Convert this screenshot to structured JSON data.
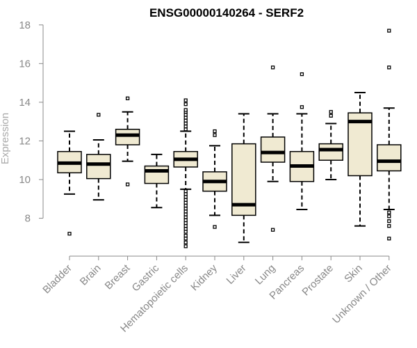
{
  "chart_data": {
    "type": "boxplot",
    "title": "ENSG00000140264 - SERF2",
    "xlabel": "",
    "ylabel": "Expression",
    "ylim": [
      6.4,
      18.1
    ],
    "yticks": [
      8,
      10,
      12,
      14,
      16,
      18
    ],
    "colors": {
      "box_fill": "#f0ead2",
      "box_stroke": "#000000",
      "axis": "#888888"
    },
    "categories": [
      "Bladder",
      "Brain",
      "Breast",
      "Gastric",
      "Hematopoietic cells",
      "Kidney",
      "Liver",
      "Lung",
      "Pancreas",
      "Prostate",
      "Skin",
      "Unknown / Other"
    ],
    "boxes": [
      {
        "name": "Bladder",
        "whisker_low": 9.25,
        "q1": 10.35,
        "median": 10.85,
        "q3": 11.45,
        "whisker_high": 12.5,
        "outliers": [
          7.2
        ]
      },
      {
        "name": "Brain",
        "whisker_low": 8.95,
        "q1": 10.05,
        "median": 10.8,
        "q3": 11.3,
        "whisker_high": 12.05,
        "outliers": [
          13.35
        ]
      },
      {
        "name": "Breast",
        "whisker_low": 10.95,
        "q1": 11.8,
        "median": 12.3,
        "q3": 12.6,
        "whisker_high": 13.5,
        "outliers": [
          9.75,
          14.2
        ]
      },
      {
        "name": "Gastric",
        "whisker_low": 8.55,
        "q1": 9.8,
        "median": 10.45,
        "q3": 10.7,
        "whisker_high": 11.3,
        "outliers": []
      },
      {
        "name": "Hematopoietic cells",
        "whisker_low": 9.5,
        "q1": 10.65,
        "median": 11.05,
        "q3": 11.45,
        "whisker_high": 12.5,
        "outliers": [
          6.55,
          6.75,
          6.95,
          7.1,
          7.3,
          7.45,
          7.6,
          7.75,
          7.9,
          8.05,
          8.2,
          8.35,
          8.5,
          8.65,
          8.8,
          8.95,
          9.1,
          9.25,
          9.4,
          12.6,
          12.75,
          12.9,
          13.05,
          13.2,
          13.35,
          13.5,
          13.6,
          13.9,
          14.1
        ]
      },
      {
        "name": "Kidney",
        "whisker_low": 8.15,
        "q1": 9.4,
        "median": 9.9,
        "q3": 10.4,
        "whisker_high": 11.75,
        "outliers": [
          7.55,
          12.3,
          12.5
        ]
      },
      {
        "name": "Liver",
        "whisker_low": 6.75,
        "q1": 8.15,
        "median": 8.7,
        "q3": 11.85,
        "whisker_high": 13.4,
        "outliers": []
      },
      {
        "name": "Lung",
        "whisker_low": 9.9,
        "q1": 10.9,
        "median": 11.4,
        "q3": 12.2,
        "whisker_high": 13.4,
        "outliers": [
          7.4,
          15.8
        ]
      },
      {
        "name": "Pancreas",
        "whisker_low": 8.45,
        "q1": 9.9,
        "median": 10.7,
        "q3": 11.45,
        "whisker_high": 13.4,
        "outliers": [
          13.75,
          15.45
        ]
      },
      {
        "name": "Prostate",
        "whisker_low": 10.0,
        "q1": 11.0,
        "median": 11.55,
        "q3": 11.85,
        "whisker_high": 12.9,
        "outliers": [
          13.3,
          13.5
        ]
      },
      {
        "name": "Skin",
        "whisker_low": 7.6,
        "q1": 10.2,
        "median": 13.0,
        "q3": 13.45,
        "whisker_high": 14.5,
        "outliers": []
      },
      {
        "name": "Unknown / Other",
        "whisker_low": 8.45,
        "q1": 10.45,
        "median": 10.95,
        "q3": 11.8,
        "whisker_high": 13.7,
        "outliers": [
          6.95,
          7.6,
          7.85,
          8.1,
          8.3,
          15.8,
          17.7
        ]
      }
    ]
  }
}
